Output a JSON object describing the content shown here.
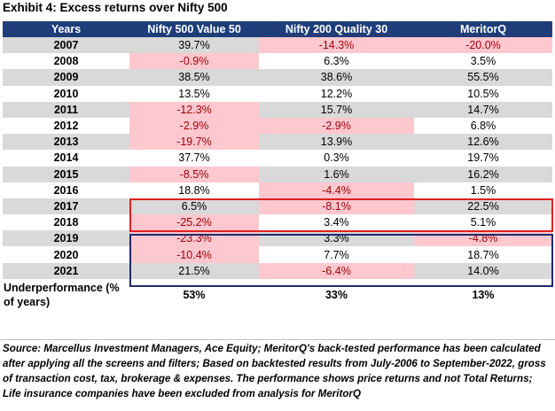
{
  "title": "Exhibit 4: Excess returns over Nifty 500",
  "headers": [
    "Years",
    "Nifty 500 Value 50",
    "Nifty 200 Quality 30",
    "MeritorQ"
  ],
  "rows": [
    {
      "year": "2007",
      "value50": "39.7%",
      "quality30": "-14.3%",
      "meritorq": "-20.0%"
    },
    {
      "year": "2008",
      "value50": "-0.9%",
      "quality30": "6.3%",
      "meritorq": "3.5%"
    },
    {
      "year": "2009",
      "value50": "38.5%",
      "quality30": "38.6%",
      "meritorq": "55.5%"
    },
    {
      "year": "2010",
      "value50": "13.5%",
      "quality30": "12.2%",
      "meritorq": "10.5%"
    },
    {
      "year": "2011",
      "value50": "-12.3%",
      "quality30": "15.7%",
      "meritorq": "14.7%"
    },
    {
      "year": "2012",
      "value50": "-2.9%",
      "quality30": "-2.9%",
      "meritorq": "6.8%"
    },
    {
      "year": "2013",
      "value50": "-19.7%",
      "quality30": "13.9%",
      "meritorq": "12.6%"
    },
    {
      "year": "2014",
      "value50": "37.7%",
      "quality30": "0.3%",
      "meritorq": "19.7%"
    },
    {
      "year": "2015",
      "value50": "-8.5%",
      "quality30": "1.6%",
      "meritorq": "16.2%"
    },
    {
      "year": "2016",
      "value50": "18.8%",
      "quality30": "-4.4%",
      "meritorq": "1.5%"
    },
    {
      "year": "2017",
      "value50": "6.5%",
      "quality30": "-8.1%",
      "meritorq": "22.5%"
    },
    {
      "year": "2018",
      "value50": "-25.2%",
      "quality30": "3.4%",
      "meritorq": "5.1%"
    },
    {
      "year": "2019",
      "value50": "-23.3%",
      "quality30": "3.3%",
      "meritorq": "-4.8%"
    },
    {
      "year": "2020",
      "value50": "-10.4%",
      "quality30": "7.7%",
      "meritorq": "18.7%"
    },
    {
      "year": "2021",
      "value50": "21.5%",
      "quality30": "-6.4%",
      "meritorq": "14.0%"
    }
  ],
  "summary": {
    "label": "Underperformance (% of years)",
    "value50": "53%",
    "quality30": "33%",
    "meritorq": "13%"
  },
  "source": "Source: Marcellus Investment Managers, Ace Equity; MeritorQ's back-tested performance has been calculated after applying all the screens and filters; Based on backtested results from July-2006 to September-2022, gross of transaction cost, tax, brokerage & expenses. The performance shows price returns and not Total Returns; Life insurance companies have been excluded from analysis for MeritorQ",
  "colors": {
    "header_bg": "#1f3e79",
    "row_shade": "#d9d9d9",
    "negative_fill": "#ffc7ce",
    "negative_text": "#9c0006",
    "highlight_box_red": "#e0211f",
    "highlight_box_navy": "#1f2a6b"
  }
}
